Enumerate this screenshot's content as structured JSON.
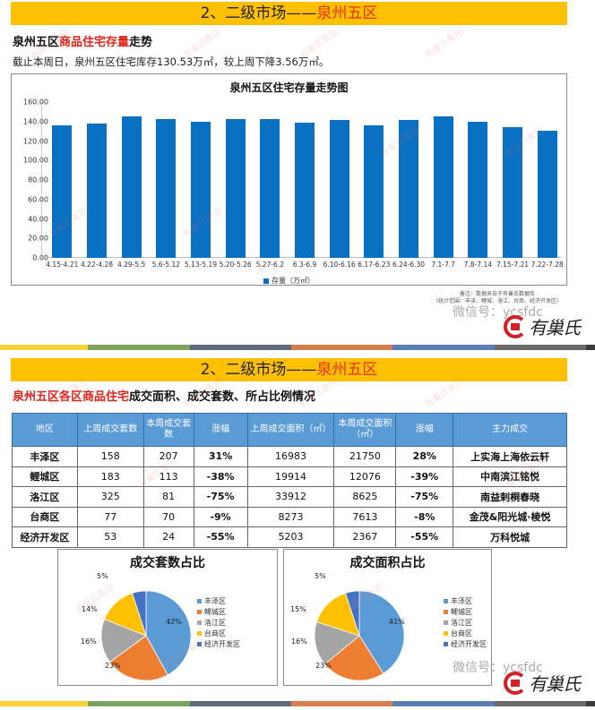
{
  "slide1": {
    "banner": {
      "prefix": "2、二级市场——",
      "highlight": "泉州五区"
    },
    "section_title": {
      "part1": "泉州五区",
      "part2": "商品住宅存量",
      "part3": "走势"
    },
    "description": "截止本周日，泉州五区住宅库存130.53万㎡，较上周下降3.56万㎡。",
    "note_line1": "备注：数据来自于有巢氏数据库",
    "note_line2": "（统计范围：丰泽、鲤城、洛江、台商、经济开发区）"
  },
  "slide2": {
    "banner": {
      "prefix": "2、二级市场——",
      "highlight": "泉州五区"
    },
    "section_title": {
      "part1": "泉州五区各区商品住宅",
      "part2": "成交面积、成交套数、所占比例情况"
    },
    "table": {
      "headers": [
        "地区",
        "上周成交套数",
        "本周成交套数",
        "涨幅",
        "上周成交面积（㎡）",
        "本周成交面积（㎡）",
        "涨幅",
        "主力成交"
      ],
      "rows": [
        [
          "丰泽区",
          "158",
          "207",
          "31%",
          "16983",
          "21750",
          "28%",
          "上实海上海依云轩"
        ],
        [
          "鲤城区",
          "183",
          "113",
          "-38%",
          "19914",
          "12076",
          "-39%",
          "中南滨江铭悦"
        ],
        [
          "洛江区",
          "325",
          "81",
          "-75%",
          "33912",
          "8625",
          "-75%",
          "南益剌桐春晓"
        ],
        [
          "台商区",
          "77",
          "70",
          "-9%",
          "8273",
          "7613",
          "-8%",
          "金茂&阳光城·棱悦"
        ],
        [
          "经济开发区",
          "53",
          "24",
          "-55%",
          "5203",
          "2367",
          "-55%",
          "万科悦城"
        ]
      ]
    }
  },
  "watermark": {
    "wechat": "微信号：ycsfdc",
    "brand": "有巢氏",
    "faint": "有巢氏集团"
  },
  "colors": {
    "banner": "#fdc002",
    "highlight_red": "#e7311c",
    "bar_blue": "#0a70c2",
    "table_header": "#5b9bd5",
    "up_red": "#d21e26",
    "down_green": "#1e9e53",
    "stripe": [
      "#fdd03a",
      "#7ea35e",
      "#5f6b7c",
      "#d67f4e",
      "#5b7fb4",
      "#6a6a6a",
      "#3c3c3c"
    ]
  },
  "chart_data": [
    {
      "type": "bar",
      "title": "泉州五区住宅存量走势图",
      "categories": [
        "4.15-4.21",
        "4.22-4.28",
        "4.29-5.5",
        "5.6-5.12",
        "5.13-5.19",
        "5.20-5.26",
        "5.27-6.2",
        "6.3-6.9",
        "6.10-6.16",
        "6.17-6.23",
        "6.24-6.30",
        "7.1-7.7",
        "7.8-7.14",
        "7.15-7.21",
        "7.22-7.28"
      ],
      "series": [
        {
          "name": "存量（万㎡）",
          "values": [
            135.7,
            138.0,
            145.5,
            142.6,
            140.0,
            142.6,
            142.6,
            138.9,
            141.9,
            135.7,
            141.3,
            145.3,
            139.8,
            134.09,
            130.53
          ]
        }
      ],
      "xlabel": "",
      "ylabel": "",
      "yticks": [
        "0.00",
        "20.00",
        "40.00",
        "60.00",
        "80.00",
        "100.00",
        "120.00",
        "140.00",
        "160.00"
      ],
      "ylim": [
        0,
        160
      ],
      "legend": "存量（万㎡）",
      "legend_position": "bottom",
      "grid": false
    },
    {
      "type": "pie",
      "title": "成交套数占比",
      "categories": [
        "丰泽区",
        "鲤城区",
        "洛江区",
        "台商区",
        "经济开发区"
      ],
      "values": [
        42,
        23,
        16,
        14,
        5
      ],
      "labels": [
        "42%",
        "23%",
        "16%",
        "14%",
        "5%"
      ],
      "colors": [
        "#5b9bd5",
        "#ed7d31",
        "#a5a5a5",
        "#ffc000",
        "#4472c4"
      ],
      "legend_position": "right"
    },
    {
      "type": "pie",
      "title": "成交面积占比",
      "categories": [
        "丰泽区",
        "鲤城区",
        "洛江区",
        "台商区",
        "经济开发区"
      ],
      "values": [
        41,
        23,
        16,
        15,
        5
      ],
      "labels": [
        "41%",
        "23%",
        "16%",
        "15%",
        "5%"
      ],
      "colors": [
        "#5b9bd5",
        "#ed7d31",
        "#a5a5a5",
        "#ffc000",
        "#4472c4"
      ],
      "legend_position": "right"
    }
  ]
}
